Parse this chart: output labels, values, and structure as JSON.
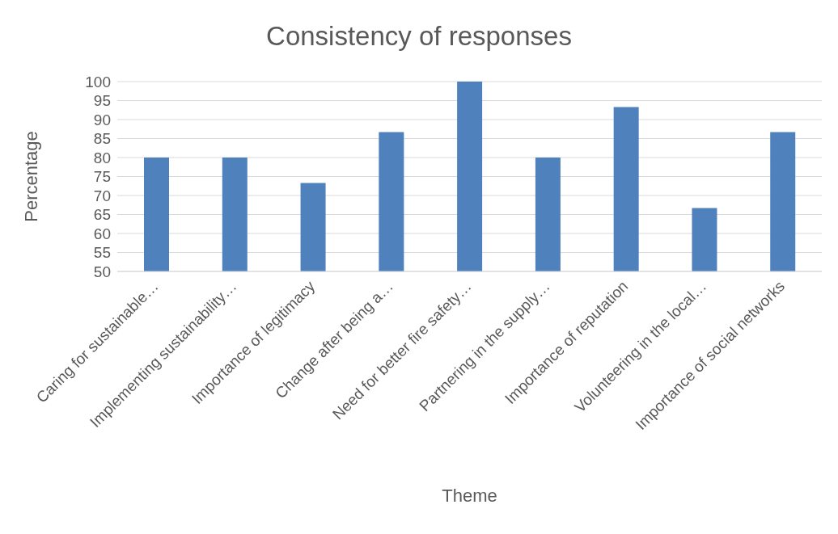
{
  "chart_data": {
    "type": "bar",
    "title": "Consistency of responses",
    "xlabel": "Theme",
    "ylabel": "Percentage",
    "categories": [
      "Caring for sustainable…",
      "Implementing sustainability…",
      "Importance of legitimacy",
      "Change after being a…",
      "Need for better fire safety…",
      "Partnering in the supply…",
      "Importance of reputation",
      "Volunteering in the local…",
      "Importance of social networks"
    ],
    "values": [
      80,
      80,
      73.3,
      86.7,
      100,
      80,
      93.3,
      66.7,
      86.7
    ],
    "color": "#4f81bd",
    "ylim": [
      50,
      100
    ],
    "yticks": [
      50,
      55,
      60,
      65,
      70,
      75,
      80,
      85,
      90,
      95,
      100
    ],
    "grid": "y",
    "legend": false
  }
}
